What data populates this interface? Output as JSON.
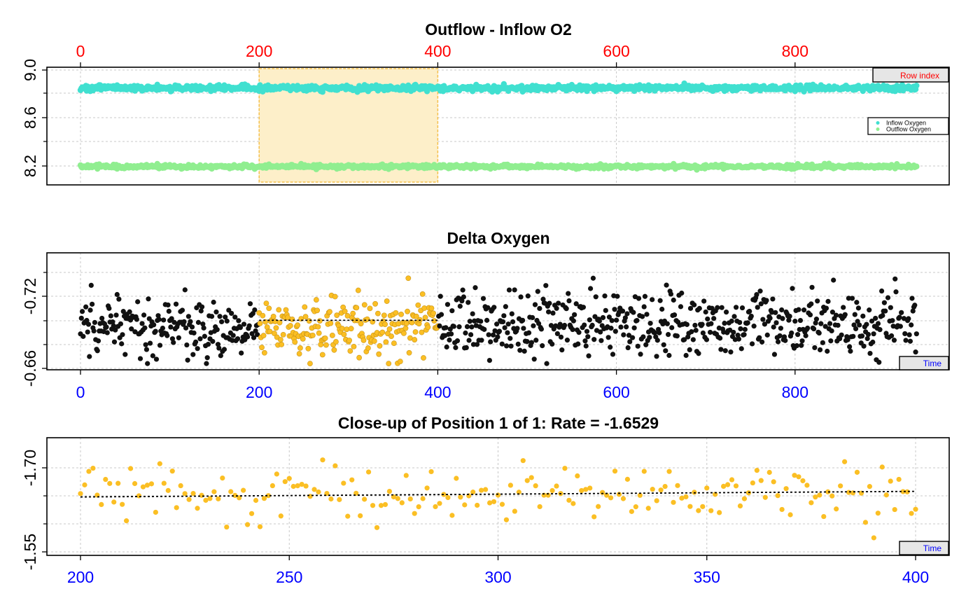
{
  "colors": {
    "inflow": "#40E0D0",
    "outflow": "#90EE90",
    "delta": "#111111",
    "highlight": "#FBBF24",
    "highlight_fill": "#FDEFC9",
    "highlight_edge": "#F5C04A",
    "top_axis": "#FF0000",
    "bottom_axis": "#0000FF",
    "legend_box": "#E6E6E6"
  },
  "chart_data": [
    {
      "type": "scatter",
      "title": "Outflow - Inflow O2",
      "axis_tag": "Row index",
      "x_axis_position": "top",
      "xlim": [
        -18,
        960
      ],
      "xticks": [
        "0",
        "200",
        "400",
        "600",
        "800"
      ],
      "ylim": [
        8.03,
        9.01
      ],
      "yticks": [
        "8.2",
        "8.6",
        "9.0"
      ],
      "grid": true,
      "highlight_range": [
        200,
        400
      ],
      "legend": {
        "placement": "right",
        "entries": [
          "Inflow Oxygen",
          "Outflow Oxygen"
        ]
      },
      "series": [
        {
          "name": "Inflow Oxygen",
          "x_range": [
            0,
            936
          ],
          "mean": 8.85,
          "spread": 0.012
        },
        {
          "name": "Outflow Oxygen",
          "x_range": [
            0,
            936
          ],
          "mean": 8.195,
          "spread": 0.008
        }
      ]
    },
    {
      "type": "scatter",
      "title": "Delta Oxygen",
      "axis_tag": "Time",
      "x_axis_position": "bottom",
      "xlim": [
        -18,
        960
      ],
      "xticks": [
        "0",
        "200",
        "400",
        "600",
        "800"
      ],
      "ylim": [
        -0.662,
        -0.736
      ],
      "yticks": [
        "-0.66",
        "-0.72"
      ],
      "grid": true,
      "highlight_range": [
        200,
        400
      ],
      "series": [
        {
          "name": "Delta Oxygen",
          "x_range": [
            0,
            936
          ],
          "mean": -0.695,
          "spread": 0.013
        }
      ],
      "fit_line": {
        "x": [
          200,
          400
        ],
        "y": [
          -0.7,
          -0.7
        ]
      }
    },
    {
      "type": "scatter",
      "title": "Close-up of Position 1 of 1: Rate =  -1.6529",
      "axis_tag": "Time",
      "x_axis_position": "bottom",
      "xlim": [
        192,
        408
      ],
      "xticks": [
        "200",
        "250",
        "300",
        "350",
        "400"
      ],
      "ylim": [
        -1.535,
        -1.755
      ],
      "yticks": [
        "-1.55",
        "-1.70"
      ],
      "grid": true,
      "series": [
        {
          "name": "Close-up",
          "x_range": [
            200,
            400
          ],
          "mean": -1.655,
          "spread": 0.027
        }
      ],
      "fit_line": {
        "x": [
          200,
          400
        ],
        "y": [
          -1.648,
          -1.658
        ]
      }
    }
  ]
}
